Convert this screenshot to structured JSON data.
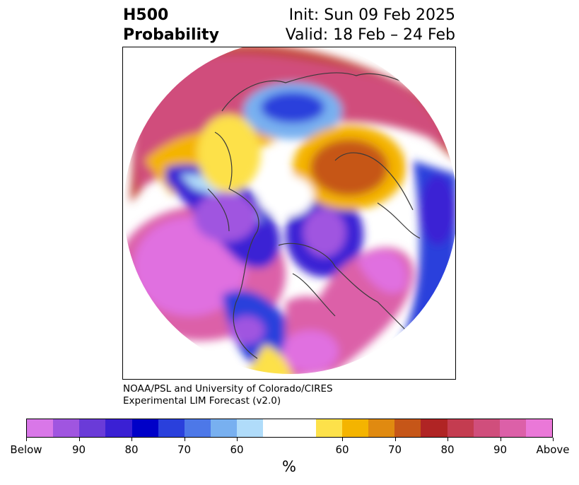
{
  "header": {
    "title_line1": "H500",
    "title_line2": "Probability",
    "init_text": "Init: Sun 09 Feb 2025",
    "valid_text": "Valid: 18 Feb – 24 Feb"
  },
  "credit": {
    "line1": "NOAA/PSL and University of Colorado/CIRES",
    "line2": "Experimental LIM Forecast (v2.0)"
  },
  "colorbar": {
    "colors": [
      "#d977e8",
      "#a055e0",
      "#6a3bd8",
      "#3a20d4",
      "#0000c8",
      "#2a40dc",
      "#4d78e8",
      "#78b0f0",
      "#b0dcfa",
      "#ffffff",
      "#ffffff",
      "#fde14a",
      "#f4b400",
      "#e08a10",
      "#c65618",
      "#b02424",
      "#c43c50",
      "#d04e7c",
      "#dc60a8",
      "#ea78d8"
    ],
    "tick_labels": [
      "Below",
      "90",
      "80",
      "70",
      "60",
      "60",
      "70",
      "80",
      "90",
      "Above"
    ],
    "units": "%"
  },
  "map": {
    "projection": "polar stereographic (north)",
    "fill_colors": {
      "below_strong": "#d977e8",
      "below_mid": "#3a20d4",
      "below_weak": "#78b0f0",
      "above_weak": "#fde14a",
      "above_mid": "#c65618",
      "above_strong": "#dc60a8"
    }
  }
}
